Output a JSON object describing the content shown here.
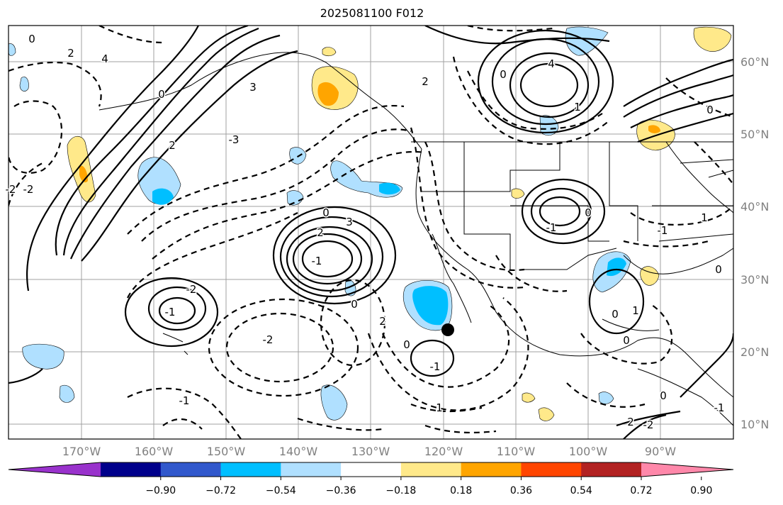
{
  "title": "2025081100 F012",
  "map": {
    "lon_ticks": [
      "170°W",
      "160°W",
      "150°W",
      "140°W",
      "130°W",
      "120°W",
      "110°W",
      "100°W",
      "90°W"
    ],
    "lat_ticks": [
      "60°N",
      "50°N",
      "40°N",
      "30°N",
      "20°N",
      "10°N"
    ],
    "contour_labels": [
      "0",
      "2",
      "4",
      "3",
      "2",
      "0",
      "-2",
      "-3",
      "0",
      "2",
      "3",
      "-1",
      "-2",
      "-1",
      "-2",
      "0",
      "2",
      "0",
      "-1",
      "4",
      "0",
      "-2",
      "2",
      "-1",
      "0",
      "1",
      "-1",
      "1",
      "0",
      "0",
      "0",
      "-1",
      "1",
      "-1",
      "2",
      "-2",
      "0",
      "1",
      "0"
    ],
    "marker": "black-dot"
  },
  "colorbar": {
    "colors": [
      "#9932cc",
      "#00008b",
      "#3158cc",
      "#00bfff",
      "#b0e0ff",
      "#ffffff",
      "#ffe98a",
      "#ffa500",
      "#ff4500",
      "#b22222",
      "#ff88aa"
    ],
    "tick_labels": [
      "−0.90",
      "−0.72",
      "−0.54",
      "−0.36",
      "−0.18",
      "0.18",
      "0.36",
      "0.54",
      "0.72",
      "0.90"
    ]
  }
}
